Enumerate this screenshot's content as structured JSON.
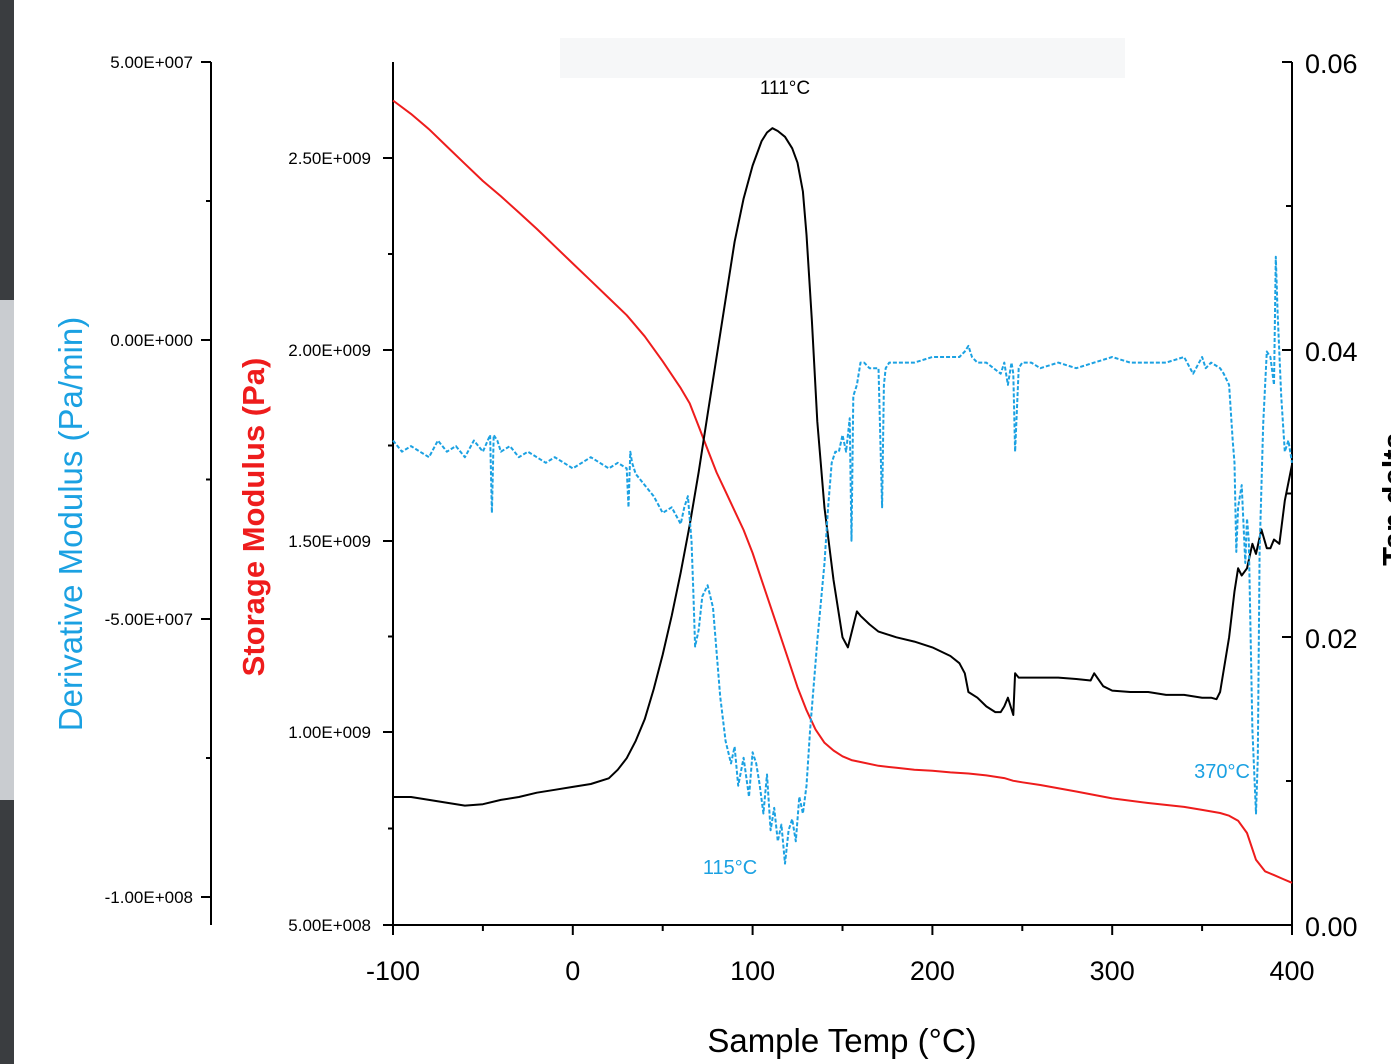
{
  "chart_data": {
    "type": "line",
    "xlabel": "Sample Temp (°C)",
    "x_ticks": [
      "-100",
      "0",
      "100",
      "200",
      "300",
      "400"
    ],
    "xlim": [
      -100,
      400
    ],
    "axes": {
      "derivative": {
        "label": "Derivative Modulus (Pa/min)",
        "color": "#1ba1e2",
        "ylim": [
          -100000000,
          50000000
        ],
        "ticks": [
          "5.00E+007",
          "0.00E+000",
          "-5.00E+007",
          "-1.00E+008"
        ],
        "tick_values": [
          50000000,
          0,
          -50000000,
          -100000000
        ]
      },
      "storage": {
        "label": "Storage Modulus (Pa)",
        "color": "#ee1c1c",
        "ylim": [
          500000000,
          2750000000
        ],
        "ticks": [
          "2.50E+009",
          "2.00E+009",
          "1.50E+009",
          "1.00E+009",
          "5.00E+008"
        ],
        "tick_values": [
          2500000000,
          2000000000,
          1500000000,
          1000000000,
          500000000
        ]
      },
      "tandelta": {
        "label": "Tan delta",
        "color": "#000000",
        "ylim": [
          0,
          0.06
        ],
        "ticks": [
          "0.06",
          "0.04",
          "0.02",
          "0.00"
        ],
        "tick_values": [
          0.06,
          0.04,
          0.02,
          0.0
        ]
      }
    },
    "series": [
      {
        "axis": "storage",
        "color": "#ee1c1c",
        "style": "solid",
        "x": [
          -100,
          -90,
          -80,
          -70,
          -60,
          -50,
          -40,
          -30,
          -20,
          -10,
          0,
          10,
          20,
          30,
          40,
          50,
          60,
          65,
          70,
          75,
          80,
          85,
          90,
          95,
          100,
          105,
          110,
          115,
          120,
          125,
          130,
          135,
          140,
          145,
          150,
          155,
          160,
          170,
          180,
          190,
          200,
          210,
          220,
          230,
          240,
          245,
          250,
          260,
          280,
          300,
          320,
          340,
          350,
          360,
          365,
          370,
          375,
          380,
          385,
          390,
          395,
          400
        ],
        "y": [
          2650000000,
          2615000000,
          2575000000,
          2530000000,
          2485000000,
          2440000000,
          2400000000,
          2358000000,
          2315000000,
          2270000000,
          2225000000,
          2180000000,
          2135000000,
          2090000000,
          2035000000,
          1970000000,
          1900000000,
          1860000000,
          1800000000,
          1740000000,
          1680000000,
          1630000000,
          1580000000,
          1530000000,
          1470000000,
          1400000000,
          1330000000,
          1260000000,
          1190000000,
          1120000000,
          1060000000,
          1010000000,
          975000000,
          955000000,
          940000000,
          930000000,
          925000000,
          915000000,
          910000000,
          905000000,
          902000000,
          898000000,
          895000000,
          890000000,
          883000000,
          876000000,
          872000000,
          865000000,
          848000000,
          830000000,
          818000000,
          808000000,
          800000000,
          792000000,
          785000000,
          772000000,
          740000000,
          670000000,
          640000000,
          630000000,
          620000000,
          610000000
        ]
      },
      {
        "axis": "tandelta",
        "color": "#000000",
        "style": "solid",
        "x": [
          -100,
          -90,
          -80,
          -70,
          -60,
          -50,
          -40,
          -30,
          -20,
          -10,
          0,
          10,
          20,
          25,
          30,
          35,
          40,
          45,
          50,
          55,
          60,
          65,
          70,
          75,
          80,
          85,
          90,
          95,
          100,
          105,
          108,
          111,
          114,
          118,
          122,
          125,
          128,
          130,
          133,
          136,
          140,
          145,
          150,
          153,
          156,
          158,
          160,
          165,
          170,
          180,
          190,
          200,
          210,
          215,
          218,
          220,
          225,
          230,
          235,
          238,
          240,
          242,
          245,
          246,
          248,
          250,
          260,
          270,
          280,
          288,
          290,
          295,
          300,
          310,
          320,
          330,
          340,
          350,
          355,
          358,
          360,
          365,
          368,
          370,
          372,
          375,
          378,
          380,
          383,
          386,
          388,
          390,
          393,
          396,
          400
        ],
        "y": [
          0.0089,
          0.0089,
          0.0087,
          0.0085,
          0.0083,
          0.0084,
          0.0087,
          0.0089,
          0.0092,
          0.0094,
          0.0096,
          0.0098,
          0.0102,
          0.0108,
          0.0116,
          0.0128,
          0.0143,
          0.0164,
          0.0188,
          0.0215,
          0.0245,
          0.0278,
          0.0315,
          0.0355,
          0.0395,
          0.0435,
          0.0475,
          0.0505,
          0.0528,
          0.0545,
          0.0551,
          0.0554,
          0.0552,
          0.0548,
          0.054,
          0.053,
          0.051,
          0.048,
          0.042,
          0.035,
          0.029,
          0.024,
          0.02,
          0.0193,
          0.0208,
          0.0218,
          0.0215,
          0.0209,
          0.0204,
          0.02,
          0.0197,
          0.0193,
          0.0187,
          0.0182,
          0.0175,
          0.0162,
          0.0158,
          0.0152,
          0.0148,
          0.0148,
          0.0152,
          0.0158,
          0.0146,
          0.0175,
          0.0172,
          0.0172,
          0.0172,
          0.0172,
          0.0171,
          0.017,
          0.0175,
          0.0166,
          0.0163,
          0.0162,
          0.0162,
          0.016,
          0.016,
          0.0158,
          0.0158,
          0.0157,
          0.0162,
          0.02,
          0.0232,
          0.0248,
          0.0243,
          0.0248,
          0.0265,
          0.0258,
          0.0275,
          0.0262,
          0.0262,
          0.0268,
          0.0265,
          0.0295,
          0.032
        ]
      },
      {
        "axis": "derivative",
        "color": "#1ba1e2",
        "style": "dashed",
        "x": [
          -100,
          -95,
          -90,
          -85,
          -80,
          -75,
          -70,
          -65,
          -60,
          -55,
          -50,
          -46,
          -45,
          -44,
          -42,
          -40,
          -35,
          -30,
          -25,
          -20,
          -15,
          -10,
          -5,
          0,
          5,
          10,
          15,
          20,
          25,
          30,
          31,
          32,
          33,
          35,
          40,
          45,
          50,
          55,
          60,
          62,
          64,
          66,
          67,
          68,
          70,
          72,
          75,
          78,
          80,
          82,
          85,
          88,
          90,
          92,
          95,
          98,
          100,
          102,
          104,
          106,
          108,
          110,
          112,
          114,
          116,
          118,
          120,
          122,
          124,
          126,
          128,
          130,
          132,
          134,
          136,
          138,
          140,
          142,
          144,
          146,
          148,
          150,
          152,
          154,
          155,
          156,
          158,
          160,
          162,
          165,
          170,
          172,
          173,
          174,
          176,
          180,
          190,
          200,
          210,
          215,
          218,
          220,
          222,
          225,
          230,
          238,
          240,
          242,
          244,
          245,
          246,
          248,
          250,
          255,
          260,
          270,
          280,
          290,
          300,
          310,
          320,
          330,
          340,
          345,
          350,
          352,
          355,
          360,
          362,
          365,
          367,
          368,
          369,
          370,
          372,
          374,
          375,
          376,
          378,
          380,
          381,
          382,
          384,
          386,
          388,
          390,
          391,
          392,
          394,
          396,
          398,
          400
        ],
        "y": [
          -18000000,
          -20000000,
          -19000000,
          -20000000,
          -21000000,
          -18000000,
          -20000000,
          -19000000,
          -21000000,
          -18000000,
          -20000000,
          -17000000,
          -31000000,
          -17000000,
          -18000000,
          -20000000,
          -19000000,
          -21000000,
          -20000000,
          -21000000,
          -22000000,
          -21000000,
          -22000000,
          -23000000,
          -22000000,
          -21000000,
          -22000000,
          -23000000,
          -22000000,
          -23000000,
          -30000000,
          -20000000,
          -22000000,
          -24000000,
          -26000000,
          -28000000,
          -31000000,
          -30000000,
          -33000000,
          -30000000,
          -28000000,
          -36000000,
          -45000000,
          -55000000,
          -52000000,
          -46000000,
          -44000000,
          -48000000,
          -56000000,
          -64000000,
          -72000000,
          -76000000,
          -73000000,
          -80000000,
          -75000000,
          -82000000,
          -74000000,
          -76000000,
          -80000000,
          -85000000,
          -78000000,
          -88000000,
          -84000000,
          -90000000,
          -87000000,
          -94000000,
          -88000000,
          -86000000,
          -90000000,
          -82000000,
          -85000000,
          -80000000,
          -70000000,
          -62000000,
          -54000000,
          -47000000,
          -40000000,
          -30000000,
          -22000000,
          -20000000,
          -20000000,
          -17000000,
          -20000000,
          -14000000,
          -36000000,
          -10000000,
          -8000000,
          -4000000,
          -4000000,
          -5000000,
          -5000000,
          -30000000,
          -8000000,
          -5000000,
          -4000000,
          -4000000,
          -4000000,
          -3000000,
          -3000000,
          -3000000,
          -2000000,
          -1000000,
          -3000000,
          -4000000,
          -4000000,
          -6000000,
          -4000000,
          -8000000,
          -4000000,
          -6000000,
          -20000000,
          -5000000,
          -4000000,
          -4000000,
          -5000000,
          -4000000,
          -5000000,
          -4000000,
          -3000000,
          -4000000,
          -4000000,
          -4000000,
          -3000000,
          -6000000,
          -3000000,
          -5000000,
          -4000000,
          -5000000,
          -6000000,
          -8000000,
          -18000000,
          -22000000,
          -38000000,
          -30000000,
          -26000000,
          -40000000,
          -32000000,
          -36000000,
          -70000000,
          -85000000,
          -75000000,
          -38000000,
          -15000000,
          -2000000,
          -3000000,
          -8000000,
          15000000,
          5000000,
          -10000000,
          -20000000,
          -18000000,
          -22000000
        ]
      }
    ],
    "annotations": [
      {
        "text": "111°C",
        "color": "#000000"
      },
      {
        "text": "115°C",
        "color": "#1ba1e2"
      },
      {
        "text": "370°C",
        "color": "#1ba1e2"
      }
    ]
  }
}
